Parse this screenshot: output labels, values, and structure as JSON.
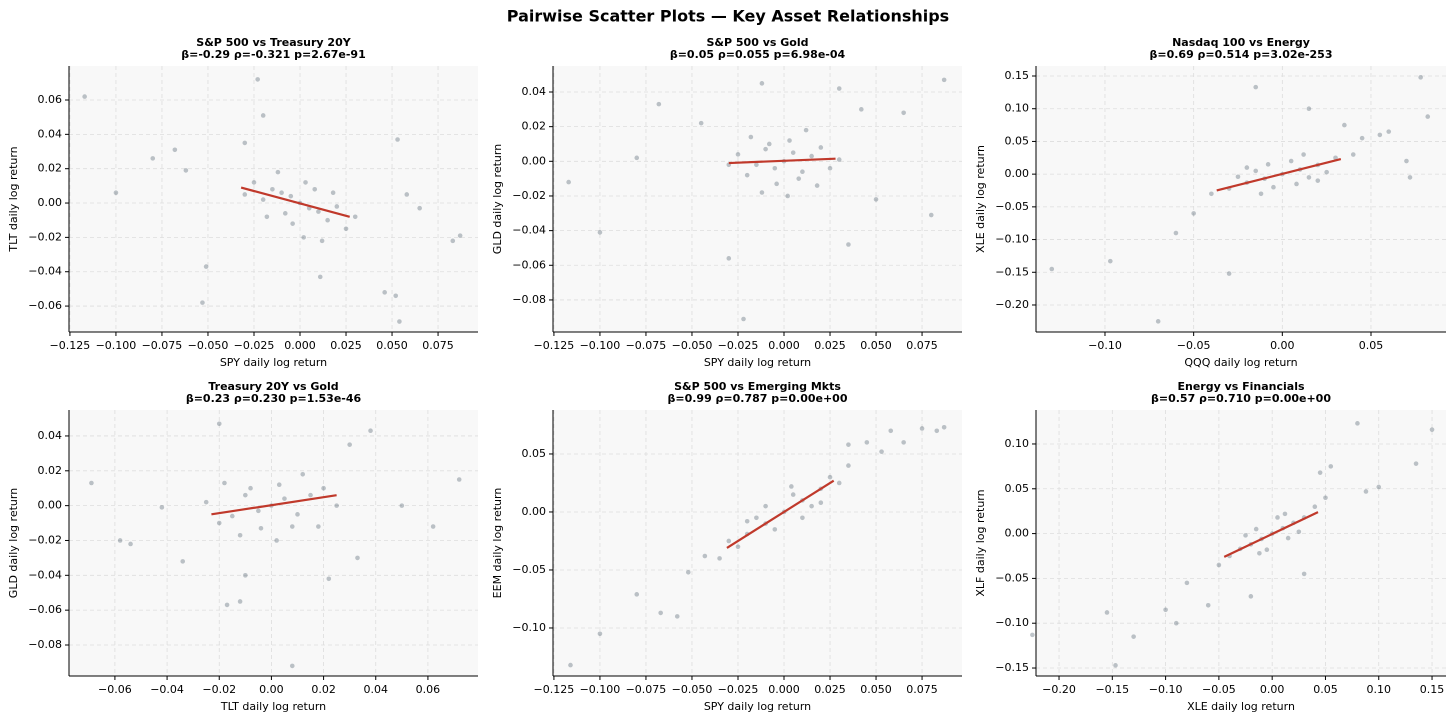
{
  "title": "Pairwise Scatter Plots — Key Asset Relationships",
  "chart_data": [
    {
      "type": "scatter",
      "title": "S&P 500 vs Treasury 20Y",
      "subtitle": "β=-0.29  ρ=-0.321  p=2.67e-91",
      "xlabel": "SPY daily log return",
      "ylabel": "TLT daily log return",
      "color": "#2c3e50",
      "fit_color": "#c0392b",
      "grid": true,
      "xlim": [
        -0.1255,
        0.0967
      ],
      "ylim": [
        -0.0751,
        0.0798
      ],
      "xticks": [
        {
          "value": -0.125,
          "label": "−0.125"
        },
        {
          "value": -0.1,
          "label": "−0.100"
        },
        {
          "value": -0.075,
          "label": "−0.075"
        },
        {
          "value": -0.05,
          "label": "−0.050"
        },
        {
          "value": -0.025,
          "label": "−0.025"
        },
        {
          "value": 0,
          "label": "0.000"
        },
        {
          "value": 0.025,
          "label": "0.025"
        },
        {
          "value": 0.05,
          "label": "0.050"
        },
        {
          "value": 0.075,
          "label": "0.075"
        }
      ],
      "yticks": [
        {
          "value": -0.06,
          "label": "−0.06"
        },
        {
          "value": -0.04,
          "label": "−0.04"
        },
        {
          "value": -0.02,
          "label": "−0.02"
        },
        {
          "value": 0,
          "label": "0.00"
        },
        0.02,
        0.04,
        0.06
      ],
      "x": [
        -0.117,
        -0.1,
        -0.08,
        -0.068,
        -0.062,
        -0.051,
        -0.053,
        -0.023,
        -0.02,
        0.046,
        0.052,
        0.054,
        0.053,
        0.083,
        0.087,
        0.065,
        0.058,
        0.011,
        -0.03,
        0,
        0.005,
        -0.005,
        0.01,
        -0.01,
        0.015,
        -0.015,
        0.003,
        -0.004,
        0.02,
        -0.02,
        0.008,
        -0.008,
        0.025,
        -0.025,
        0.012,
        -0.012,
        0.002,
        0.03,
        -0.03,
        0.018,
        -0.018
      ],
      "y": [
        0.062,
        0.006,
        0.026,
        0.031,
        0.019,
        -0.037,
        -0.058,
        0.072,
        0.051,
        -0.052,
        -0.054,
        -0.069,
        0.037,
        -0.022,
        -0.019,
        -0.003,
        0.005,
        -0.043,
        0.035,
        0,
        -0.003,
        0.004,
        -0.005,
        0.006,
        -0.01,
        0.008,
        0.012,
        -0.012,
        -0.002,
        0.002,
        0.008,
        -0.006,
        -0.015,
        0.012,
        -0.022,
        0.018,
        -0.02,
        -0.008,
        0.005,
        0.006,
        -0.008
      ],
      "fit": {
        "x": [
          -0.032,
          0.027
        ],
        "y": [
          0.009,
          -0.008
        ]
      }
    },
    {
      "type": "scatter",
      "title": "S&P 500 vs Gold",
      "subtitle": "β=0.05  ρ=0.055  p=6.98e-04",
      "xlabel": "SPY daily log return",
      "ylabel": "GLD daily log return",
      "color": "#2c3e50",
      "fit_color": "#c0392b",
      "grid": true,
      "xlim": [
        -0.1255,
        0.0967
      ],
      "ylim": [
        -0.0985,
        0.055
      ],
      "xticks": [
        {
          "value": -0.125,
          "label": "−0.125"
        },
        {
          "value": -0.1,
          "label": "−0.100"
        },
        {
          "value": -0.075,
          "label": "−0.075"
        },
        {
          "value": -0.05,
          "label": "−0.050"
        },
        {
          "value": -0.025,
          "label": "−0.025"
        },
        {
          "value": 0,
          "label": "0.000"
        },
        {
          "value": 0.025,
          "label": "0.025"
        },
        {
          "value": 0.05,
          "label": "0.050"
        },
        {
          "value": 0.075,
          "label": "0.075"
        }
      ],
      "yticks": [
        {
          "value": -0.08,
          "label": "−0.08"
        },
        {
          "value": -0.06,
          "label": "−0.06"
        },
        {
          "value": -0.04,
          "label": "−0.04"
        },
        {
          "value": -0.02,
          "label": "−0.02"
        },
        {
          "value": 0,
          "label": "0.00"
        },
        0.02,
        0.04
      ],
      "x": [
        -0.117,
        -0.1,
        -0.08,
        -0.068,
        -0.03,
        -0.022,
        0.087,
        0.08,
        0.065,
        0.05,
        0.035,
        0.03,
        -0.012,
        -0.045,
        0.042,
        0,
        0.005,
        -0.005,
        0.01,
        -0.01,
        0.015,
        -0.015,
        0.003,
        -0.004,
        0.02,
        -0.02,
        0.008,
        -0.008,
        0.025,
        -0.025,
        0.012,
        -0.012,
        0.002,
        0.03,
        -0.03,
        0.018,
        -0.018
      ],
      "y": [
        -0.012,
        -0.041,
        0.002,
        0.033,
        -0.056,
        -0.091,
        0.047,
        -0.031,
        0.028,
        -0.022,
        -0.048,
        0.042,
        0.045,
        0.022,
        0.03,
        0,
        0.005,
        -0.004,
        -0.006,
        0.007,
        0.003,
        -0.002,
        0.012,
        -0.013,
        0.008,
        -0.008,
        -0.01,
        0.01,
        -0.004,
        0.004,
        0.018,
        -0.018,
        -0.02,
        0.001,
        -0.002,
        -0.014,
        0.014
      ],
      "fit": {
        "x": [
          -0.03,
          0.028
        ],
        "y": [
          -0.001,
          0.0015
        ]
      }
    },
    {
      "type": "scatter",
      "title": "Nasdaq 100 vs Energy",
      "subtitle": "β=0.69  ρ=0.514  p=3.02e-253",
      "xlabel": "QQQ daily log return",
      "ylabel": "XLE daily log return",
      "color": "#2c3e50",
      "fit_color": "#c0392b",
      "grid": true,
      "xlim": [
        -0.1389,
        0.0923
      ],
      "ylim": [
        -0.2413,
        0.1653
      ],
      "xticks": [
        {
          "value": -0.1,
          "label": "−0.10"
        },
        {
          "value": -0.05,
          "label": "−0.05"
        },
        {
          "value": 0,
          "label": "0.00"
        },
        0.05
      ],
      "yticks": [
        {
          "value": -0.2,
          "label": "−0.20"
        },
        {
          "value": -0.15,
          "label": "−0.15"
        },
        {
          "value": -0.1,
          "label": "−0.10"
        },
        {
          "value": -0.05,
          "label": "−0.05"
        },
        {
          "value": 0,
          "label": "0.00"
        },
        0.05,
        {
          "value": 0.1,
          "label": "0.10"
        },
        0.15
      ],
      "x": [
        -0.13,
        -0.097,
        -0.07,
        -0.06,
        -0.03,
        -0.015,
        0.015,
        0.078,
        0.082,
        0.07,
        0.072,
        0.06,
        0.055,
        0.045,
        -0.05,
        0.035,
        0,
        0.01,
        -0.01,
        0.02,
        -0.02,
        0.005,
        -0.005,
        0.015,
        -0.015,
        0.03,
        -0.03,
        0.025,
        -0.025,
        0.008,
        -0.008,
        0.04,
        -0.04,
        0.012,
        -0.012,
        0.02,
        -0.02
      ],
      "y": [
        -0.145,
        -0.133,
        -0.225,
        -0.09,
        -0.152,
        0.133,
        0.1,
        0.148,
        0.088,
        0.02,
        -0.005,
        0.065,
        0.06,
        0.055,
        -0.06,
        0.075,
        0,
        0.007,
        -0.007,
        0.014,
        -0.013,
        0.02,
        -0.02,
        -0.005,
        0.005,
        0.025,
        -0.022,
        0.003,
        -0.004,
        -0.015,
        0.015,
        0.03,
        -0.03,
        0.03,
        -0.03,
        -0.01,
        0.01
      ],
      "fit": {
        "x": [
          -0.037,
          0.033
        ],
        "y": [
          -0.025,
          0.023
        ]
      }
    },
    {
      "type": "scatter",
      "title": "Treasury 20Y vs Gold",
      "subtitle": "β=0.23  ρ=0.230  p=1.53e-46",
      "xlabel": "TLT daily log return",
      "ylabel": "GLD daily log return",
      "color": "#2c3e50",
      "fit_color": "#c0392b",
      "grid": true,
      "xlim": [
        -0.0776,
        0.0792
      ],
      "ylim": [
        -0.0978,
        0.0549
      ],
      "xticks": [
        {
          "value": -0.06,
          "label": "−0.06"
        },
        {
          "value": -0.04,
          "label": "−0.04"
        },
        {
          "value": -0.02,
          "label": "−0.02"
        },
        {
          "value": 0,
          "label": "0.00"
        },
        0.02,
        0.04,
        0.06
      ],
      "yticks": [
        {
          "value": -0.08,
          "label": "−0.08"
        },
        {
          "value": -0.06,
          "label": "−0.06"
        },
        {
          "value": -0.04,
          "label": "−0.04"
        },
        {
          "value": -0.02,
          "label": "−0.02"
        },
        {
          "value": 0,
          "label": "0.00"
        },
        0.02,
        0.04
      ],
      "x": [
        -0.069,
        -0.058,
        -0.054,
        -0.042,
        -0.034,
        -0.02,
        -0.017,
        -0.012,
        0.008,
        0.038,
        0.05,
        0.062,
        0.072,
        0.03,
        0.033,
        0.022,
        -0.01,
        0,
        0.005,
        -0.005,
        0.01,
        -0.01,
        0.015,
        -0.015,
        0.003,
        -0.004,
        0.02,
        -0.02,
        0.008,
        -0.008,
        0.025,
        -0.025,
        0.012,
        -0.012,
        0.002,
        0.018,
        -0.018
      ],
      "y": [
        0.013,
        -0.02,
        -0.022,
        -0.001,
        -0.032,
        0.047,
        -0.057,
        -0.055,
        -0.092,
        0.043,
        0,
        -0.012,
        0.015,
        0.035,
        -0.03,
        -0.042,
        -0.04,
        0,
        0.004,
        -0.003,
        -0.005,
        0.006,
        0.006,
        -0.006,
        0.012,
        -0.013,
        0.01,
        -0.01,
        -0.012,
        0.01,
        0,
        0.002,
        0.018,
        -0.017,
        -0.02,
        -0.012,
        0.013
      ],
      "fit": {
        "x": [
          -0.023,
          0.025
        ],
        "y": [
          -0.005,
          0.006
        ]
      }
    },
    {
      "type": "scatter",
      "title": "S&P 500 vs Emerging Mkts",
      "subtitle": "β=0.99  ρ=0.787  p=0.00e+00",
      "xlabel": "SPY daily log return",
      "ylabel": "EEM daily log return",
      "color": "#2c3e50",
      "fit_color": "#c0392b",
      "grid": true,
      "xlim": [
        -0.1255,
        0.0967
      ],
      "ylim": [
        -0.1414,
        0.0879
      ],
      "xticks": [
        {
          "value": -0.125,
          "label": "−0.125"
        },
        {
          "value": -0.1,
          "label": "−0.100"
        },
        {
          "value": -0.075,
          "label": "−0.075"
        },
        {
          "value": -0.05,
          "label": "−0.050"
        },
        {
          "value": -0.025,
          "label": "−0.025"
        },
        {
          "value": 0,
          "label": "0.000"
        },
        {
          "value": 0.025,
          "label": "0.025"
        },
        {
          "value": 0.05,
          "label": "0.050"
        },
        {
          "value": 0.075,
          "label": "0.075"
        }
      ],
      "yticks": [
        {
          "value": -0.1,
          "label": "−0.10"
        },
        {
          "value": -0.05,
          "label": "−0.05"
        },
        {
          "value": 0,
          "label": "0.00"
        },
        0.05
      ],
      "x": [
        -0.116,
        -0.1,
        -0.08,
        -0.067,
        -0.058,
        -0.052,
        0.065,
        0.075,
        0.083,
        0.087,
        0.053,
        0.045,
        0.035,
        -0.043,
        0.058,
        0,
        0.01,
        -0.01,
        0.02,
        -0.02,
        0.005,
        -0.005,
        0.015,
        -0.015,
        0.025,
        -0.025,
        0.03,
        -0.03,
        0.01,
        -0.01,
        0.035,
        -0.035,
        0.02,
        -0.02,
        0.004
      ],
      "y": [
        -0.132,
        -0.105,
        -0.071,
        -0.087,
        -0.09,
        -0.052,
        0.06,
        0.072,
        0.07,
        0.073,
        0.052,
        0.06,
        0.058,
        -0.038,
        0.07,
        0,
        0.01,
        -0.01,
        0.02,
        -0.019,
        0.015,
        -0.015,
        0.005,
        -0.005,
        0.03,
        -0.03,
        0.025,
        -0.025,
        -0.005,
        0.005,
        0.04,
        -0.04,
        0.008,
        -0.008,
        0.022
      ],
      "fit": {
        "x": [
          -0.031,
          0.027
        ],
        "y": [
          -0.031,
          0.027
        ]
      }
    },
    {
      "type": "scatter",
      "title": "Energy vs Financials",
      "subtitle": "β=0.57  ρ=0.710  p=0.00e+00",
      "xlabel": "XLE daily log return",
      "ylabel": "XLF daily log return",
      "color": "#2c3e50",
      "fit_color": "#c0392b",
      "grid": true,
      "xlim": [
        -0.2216,
        0.1631
      ],
      "ylim": [
        -0.1589,
        0.1379
      ],
      "xticks": [
        {
          "value": -0.2,
          "label": "−0.20"
        },
        {
          "value": -0.15,
          "label": "−0.15"
        },
        {
          "value": -0.1,
          "label": "−0.10"
        },
        {
          "value": -0.05,
          "label": "−0.05"
        },
        {
          "value": 0,
          "label": "0.00"
        },
        0.05,
        {
          "value": 0.1,
          "label": "0.10"
        },
        0.15
      ],
      "yticks": [
        {
          "value": -0.15,
          "label": "−0.15"
        },
        {
          "value": -0.1,
          "label": "−0.10"
        },
        {
          "value": -0.05,
          "label": "−0.05"
        },
        {
          "value": 0,
          "label": "0.00"
        },
        0.05,
        {
          "value": 0.1,
          "label": "0.10"
        }
      ],
      "x": [
        -0.225,
        -0.155,
        -0.147,
        -0.13,
        -0.1,
        -0.09,
        -0.08,
        0.08,
        0.135,
        0.15,
        0.1,
        0.088,
        0.055,
        0.045,
        -0.06,
        0.03,
        -0.02,
        0,
        0.01,
        -0.01,
        0.02,
        -0.02,
        0.03,
        -0.03,
        0.005,
        -0.005,
        0.015,
        -0.015,
        0.04,
        -0.04,
        0.025,
        -0.025,
        0.05,
        -0.05,
        0.012,
        -0.012
      ],
      "y": [
        -0.113,
        -0.088,
        -0.147,
        -0.115,
        -0.085,
        -0.1,
        -0.055,
        0.123,
        0.078,
        0.116,
        0.052,
        0.047,
        0.075,
        0.068,
        -0.08,
        -0.045,
        -0.07,
        0,
        0.006,
        -0.006,
        0.012,
        -0.012,
        0.018,
        -0.017,
        0.018,
        -0.018,
        -0.005,
        0.005,
        0.03,
        -0.025,
        0.002,
        -0.002,
        0.04,
        -0.035,
        0.022,
        -0.022
      ],
      "fit": {
        "x": [
          -0.045,
          0.043
        ],
        "y": [
          -0.026,
          0.024
        ]
      }
    }
  ]
}
